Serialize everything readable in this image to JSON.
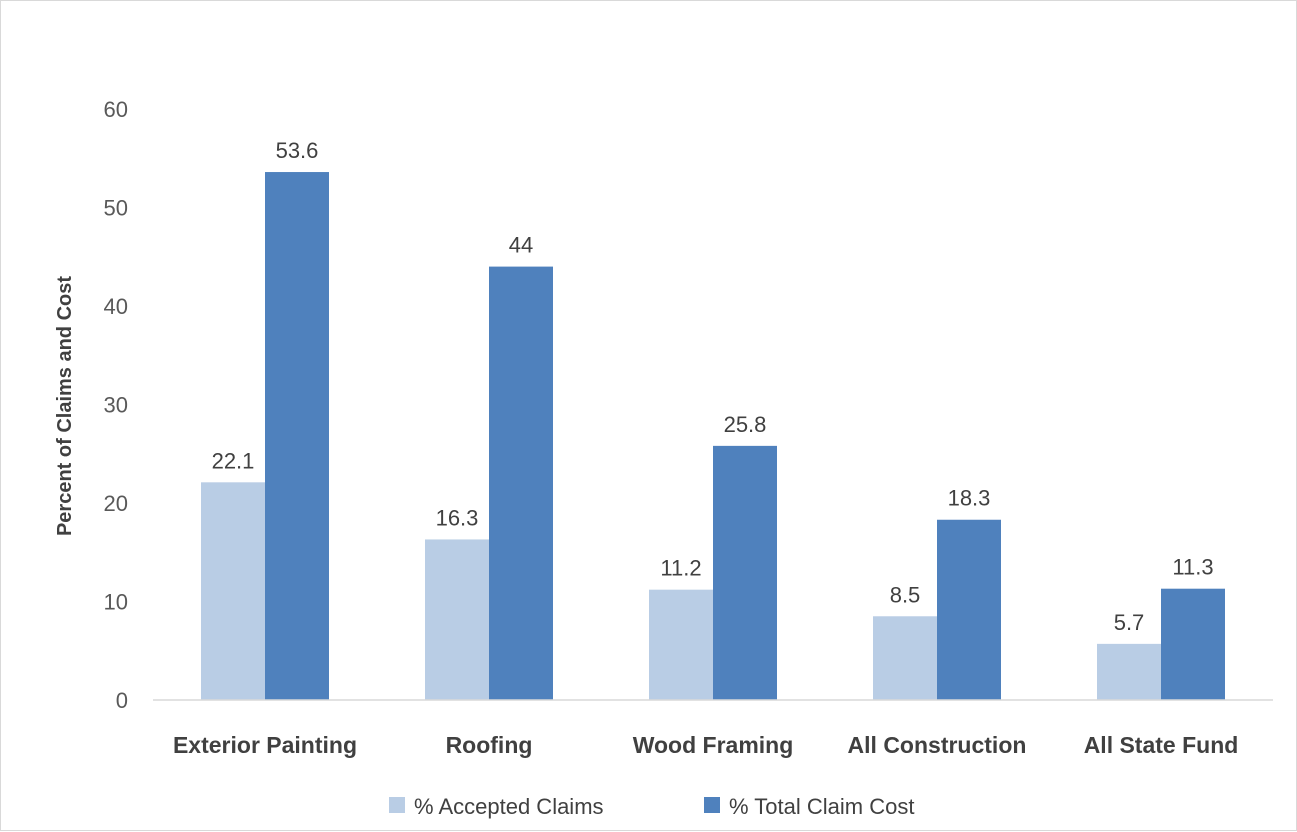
{
  "chart_data": {
    "type": "bar",
    "title": "",
    "xlabel": "",
    "ylabel": "Percent of Claims and Cost",
    "ylim": [
      0,
      60
    ],
    "yticks": [
      0,
      10,
      20,
      30,
      40,
      50,
      60
    ],
    "grid": false,
    "legend_position": "bottom",
    "categories": [
      "Exterior Painting",
      "Roofing",
      "Wood Framing",
      "All Construction",
      "All State Fund"
    ],
    "series": [
      {
        "name": "% Accepted Claims",
        "color": "#b9cde5",
        "values": [
          22.1,
          16.3,
          11.2,
          8.5,
          5.7
        ],
        "labels": [
          "22.1",
          "16.3",
          "11.2",
          "8.5",
          "5.7"
        ]
      },
      {
        "name": "% Total Claim Cost",
        "color": "#4f81bd",
        "values": [
          53.6,
          44,
          25.8,
          18.3,
          11.3
        ],
        "labels": [
          "53.6",
          "44",
          "25.8",
          "18.3",
          "11.3"
        ]
      }
    ]
  }
}
